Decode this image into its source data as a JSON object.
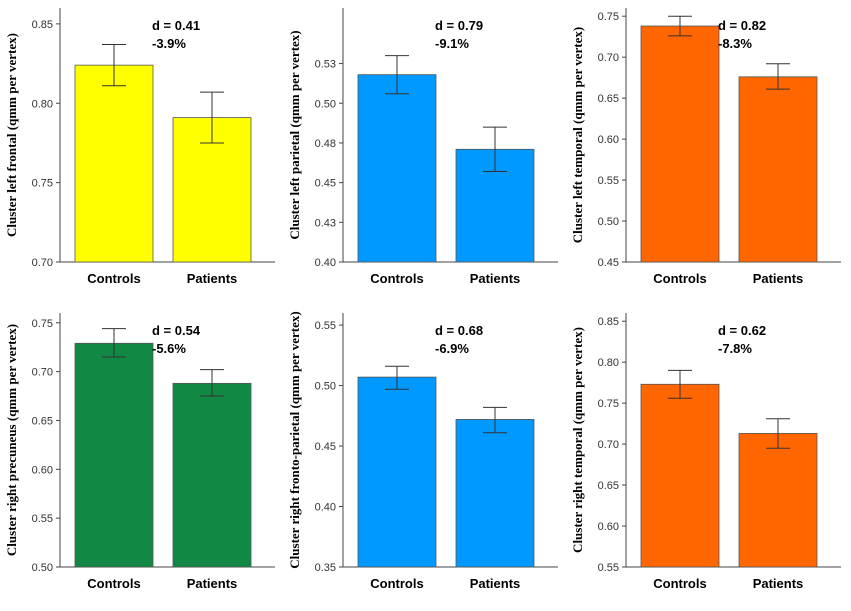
{
  "chart_data": [
    {
      "type": "bar",
      "ylabel": "Cluster left frontal (qmm per vertex)",
      "categories": [
        "Controls",
        "Patients"
      ],
      "values": [
        0.824,
        0.791
      ],
      "errors_low": [
        0.811,
        0.775
      ],
      "errors_high": [
        0.837,
        0.807
      ],
      "ylim": [
        0.7,
        0.86
      ],
      "yticks": [
        "0.70",
        "0.75",
        "0.80",
        "0.85"
      ],
      "ytick_values": [
        0.7,
        0.75,
        0.8,
        0.85
      ],
      "annotation": [
        "d = 0.41",
        "-3.9%"
      ],
      "color": "#ffff00"
    },
    {
      "type": "bar",
      "ylabel": "Cluster left parietal (qmm per vertex)",
      "categories": [
        "Controls",
        "Patients"
      ],
      "values": [
        0.518,
        0.471
      ],
      "errors_low": [
        0.506,
        0.457
      ],
      "errors_high": [
        0.53,
        0.485
      ],
      "ylim": [
        0.4,
        0.56
      ],
      "yticks": [
        "0.40",
        "0.43",
        "0.45",
        "0.48",
        "0.50",
        "0.53"
      ],
      "ytick_values": [
        0.4,
        0.425,
        0.45,
        0.475,
        0.5,
        0.525
      ],
      "annotation": [
        "d = 0.79",
        "-9.1%"
      ],
      "color": "#0099ff"
    },
    {
      "type": "bar",
      "ylabel": "Cluster left temporal (qmm per vertex)",
      "categories": [
        "Controls",
        "Patients"
      ],
      "values": [
        0.738,
        0.676
      ],
      "errors_low": [
        0.726,
        0.661
      ],
      "errors_high": [
        0.75,
        0.692
      ],
      "ylim": [
        0.45,
        0.76
      ],
      "yticks": [
        "0.45",
        "0.50",
        "0.55",
        "0.60",
        "0.65",
        "0.70",
        "0.75"
      ],
      "ytick_values": [
        0.45,
        0.5,
        0.55,
        0.6,
        0.65,
        0.7,
        0.75
      ],
      "annotation": [
        "d = 0.82",
        "-8.3%"
      ],
      "color": "#ff6600"
    },
    {
      "type": "bar",
      "ylabel": "Cluster right precuneus (qmm per vertex)",
      "categories": [
        "Controls",
        "Patients"
      ],
      "values": [
        0.729,
        0.688
      ],
      "errors_low": [
        0.715,
        0.675
      ],
      "errors_high": [
        0.744,
        0.702
      ],
      "ylim": [
        0.5,
        0.76
      ],
      "yticks": [
        "0.50",
        "0.55",
        "0.60",
        "0.65",
        "0.70",
        "0.75"
      ],
      "ytick_values": [
        0.5,
        0.55,
        0.6,
        0.65,
        0.7,
        0.75
      ],
      "annotation": [
        "d = 0.54",
        "-5.6%"
      ],
      "color": "#118844"
    },
    {
      "type": "bar",
      "ylabel": "Cluster right fronto-parietal (qmm per vertex)",
      "categories": [
        "Controls",
        "Patients"
      ],
      "values": [
        0.507,
        0.472
      ],
      "errors_low": [
        0.497,
        0.461
      ],
      "errors_high": [
        0.516,
        0.482
      ],
      "ylim": [
        0.35,
        0.56
      ],
      "yticks": [
        "0.35",
        "0.40",
        "0.45",
        "0.50",
        "0.55"
      ],
      "ytick_values": [
        0.35,
        0.4,
        0.45,
        0.5,
        0.55
      ],
      "annotation": [
        "d = 0.68",
        "-6.9%"
      ],
      "color": "#0099ff"
    },
    {
      "type": "bar",
      "ylabel": "Cluster right temporal (qmm per vertex)",
      "categories": [
        "Controls",
        "Patients"
      ],
      "values": [
        0.773,
        0.713
      ],
      "errors_low": [
        0.756,
        0.695
      ],
      "errors_high": [
        0.79,
        0.731
      ],
      "ylim": [
        0.55,
        0.86
      ],
      "yticks": [
        "0.55",
        "0.60",
        "0.65",
        "0.70",
        "0.75",
        "0.80",
        "0.85"
      ],
      "ytick_values": [
        0.55,
        0.6,
        0.65,
        0.7,
        0.75,
        0.8,
        0.85
      ],
      "annotation": [
        "d = 0.62",
        "-7.8%"
      ],
      "color": "#ff6600"
    }
  ]
}
